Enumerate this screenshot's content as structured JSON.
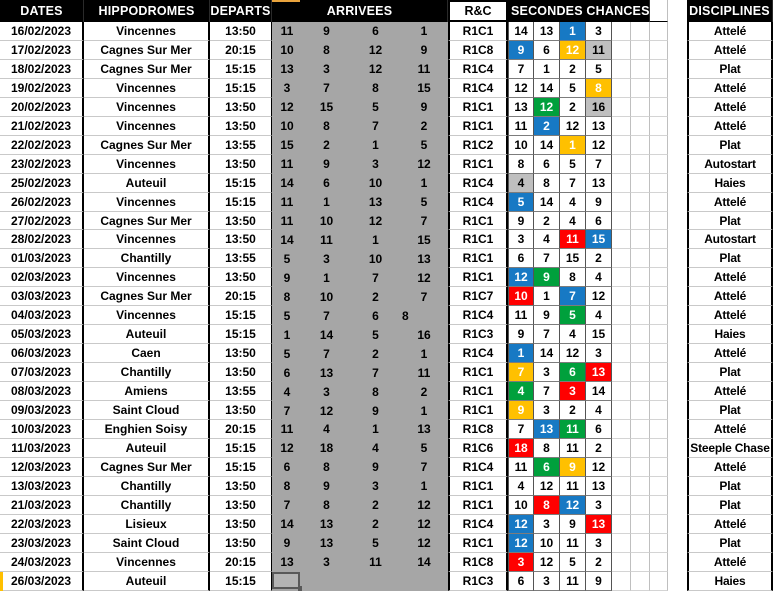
{
  "header": {
    "dates": "DATES",
    "hippodromes": "HIPPODROMES",
    "departs": "DEPARTS",
    "arrivees": "ARRIVEES",
    "rc": "R&C",
    "secondes_chances": "SECONDES CHANCES",
    "disciplines": "DISCIPLINES"
  },
  "colors": {
    "header_bg": "#000000",
    "header_text": "#ffffff",
    "arrivees_bg": "#a6a6a6",
    "blue": "#1779c4",
    "green": "#00a03c",
    "yellow": "#ffc000",
    "red": "#ff0000",
    "gray": "#bfbfbf",
    "selection_border": "#595959",
    "marker_orange": "#e8a33d"
  },
  "rows": [
    {
      "date": "16/02/2023",
      "hippodrome": "Vincennes",
      "depart": "13:50",
      "arrivees": [
        "11",
        "9",
        "6",
        "1"
      ],
      "rc": "R1C1",
      "sc": [
        [
          "14",
          ""
        ],
        [
          "13",
          ""
        ],
        [
          "1",
          "blue"
        ],
        [
          "3",
          ""
        ]
      ],
      "discipline": "Attelé"
    },
    {
      "date": "17/02/2023",
      "hippodrome": "Cagnes Sur Mer",
      "depart": "20:15",
      "arrivees": [
        "10",
        "8",
        "12",
        "9"
      ],
      "rc": "R1C8",
      "sc": [
        [
          "9",
          "blue"
        ],
        [
          "6",
          ""
        ],
        [
          "12",
          "yellow"
        ],
        [
          "11",
          "gray"
        ]
      ],
      "discipline": "Attelé"
    },
    {
      "date": "18/02/2023",
      "hippodrome": "Cagnes Sur Mer",
      "depart": "15:15",
      "arrivees": [
        "13",
        "3",
        "12",
        "11"
      ],
      "rc": "R1C4",
      "sc": [
        [
          "7",
          ""
        ],
        [
          "1",
          ""
        ],
        [
          "2",
          ""
        ],
        [
          "5",
          ""
        ]
      ],
      "discipline": "Plat"
    },
    {
      "date": "19/02/2023",
      "hippodrome": "Vincennes",
      "depart": "15:15",
      "arrivees": [
        "3",
        "7",
        "8",
        "15"
      ],
      "rc": "R1C4",
      "sc": [
        [
          "12",
          ""
        ],
        [
          "14",
          ""
        ],
        [
          "5",
          ""
        ],
        [
          "8",
          "yellow"
        ]
      ],
      "discipline": "Attelé"
    },
    {
      "date": "20/02/2023",
      "hippodrome": "Vincennes",
      "depart": "13:50",
      "arrivees": [
        "12",
        "15",
        "5",
        "9"
      ],
      "rc": "R1C1",
      "sc": [
        [
          "13",
          ""
        ],
        [
          "12",
          "green"
        ],
        [
          "2",
          ""
        ],
        [
          "16",
          "gray"
        ]
      ],
      "discipline": "Attelé"
    },
    {
      "date": "21/02/2023",
      "hippodrome": "Vincennes",
      "depart": "13:50",
      "arrivees": [
        "10",
        "8",
        "7",
        "2"
      ],
      "rc": "R1C1",
      "sc": [
        [
          "11",
          ""
        ],
        [
          "2",
          "blue"
        ],
        [
          "12",
          ""
        ],
        [
          "13",
          ""
        ]
      ],
      "discipline": "Attelé"
    },
    {
      "date": "22/02/2023",
      "hippodrome": "Cagnes Sur Mer",
      "depart": "13:55",
      "arrivees": [
        "15",
        "2",
        "1",
        "5"
      ],
      "rc": "R1C2",
      "sc": [
        [
          "10",
          ""
        ],
        [
          "14",
          ""
        ],
        [
          "1",
          "yellow"
        ],
        [
          "12",
          ""
        ]
      ],
      "discipline": "Plat"
    },
    {
      "date": "23/02/2023",
      "hippodrome": "Vincennes",
      "depart": "13:50",
      "arrivees": [
        "11",
        "9",
        "3",
        "12"
      ],
      "rc": "R1C1",
      "sc": [
        [
          "8",
          ""
        ],
        [
          "6",
          ""
        ],
        [
          "5",
          ""
        ],
        [
          "7",
          ""
        ]
      ],
      "discipline": "Autostart"
    },
    {
      "date": "25/02/2023",
      "hippodrome": "Auteuil",
      "depart": "15:15",
      "arrivees": [
        "14",
        "6",
        "10",
        "1"
      ],
      "rc": "R1C4",
      "sc": [
        [
          "4",
          "gray"
        ],
        [
          "8",
          ""
        ],
        [
          "7",
          ""
        ],
        [
          "13",
          ""
        ]
      ],
      "discipline": "Haies"
    },
    {
      "date": "26/02/2023",
      "hippodrome": "Vincennes",
      "depart": "15:15",
      "arrivees": [
        "11",
        "1",
        "13",
        "5"
      ],
      "rc": "R1C4",
      "sc": [
        [
          "5",
          "blue"
        ],
        [
          "14",
          ""
        ],
        [
          "4",
          ""
        ],
        [
          "9",
          ""
        ]
      ],
      "discipline": "Attelé"
    },
    {
      "date": "27/02/2023",
      "hippodrome": "Cagnes Sur Mer",
      "depart": "13:50",
      "arrivees": [
        "11",
        "10",
        "12",
        "7"
      ],
      "rc": "R1C1",
      "sc": [
        [
          "9",
          ""
        ],
        [
          "2",
          ""
        ],
        [
          "4",
          ""
        ],
        [
          "6",
          ""
        ]
      ],
      "discipline": "Plat"
    },
    {
      "date": "28/02/2023",
      "hippodrome": "Vincennes",
      "depart": "13:50",
      "arrivees": [
        "14",
        "11",
        "1",
        "15"
      ],
      "rc": "R1C1",
      "sc": [
        [
          "3",
          ""
        ],
        [
          "4",
          ""
        ],
        [
          "11",
          "red"
        ],
        [
          "15",
          "blue"
        ]
      ],
      "discipline": "Autostart"
    },
    {
      "date": "01/03/2023",
      "hippodrome": "Chantilly",
      "depart": "13:55",
      "arrivees": [
        "5",
        "3",
        "10",
        "13"
      ],
      "rc": "R1C1",
      "sc": [
        [
          "6",
          ""
        ],
        [
          "7",
          ""
        ],
        [
          "15",
          ""
        ],
        [
          "2",
          ""
        ]
      ],
      "discipline": "Plat"
    },
    {
      "date": "02/03/2023",
      "hippodrome": "Vincennes",
      "depart": "13:50",
      "arrivees": [
        "9",
        "1",
        "7",
        "12"
      ],
      "rc": "R1C1",
      "sc": [
        [
          "12",
          "blue"
        ],
        [
          "9",
          "green"
        ],
        [
          "8",
          ""
        ],
        [
          "4",
          ""
        ]
      ],
      "discipline": "Attelé"
    },
    {
      "date": "03/03/2023",
      "hippodrome": "Cagnes Sur Mer",
      "depart": "20:15",
      "arrivees": [
        "8",
        "10",
        "2",
        "7"
      ],
      "rc": "R1C7",
      "sc": [
        [
          "10",
          "red"
        ],
        [
          "1",
          ""
        ],
        [
          "7",
          "blue"
        ],
        [
          "12",
          ""
        ]
      ],
      "discipline": "Attelé"
    },
    {
      "date": "04/03/2023",
      "hippodrome": "Vincennes",
      "depart": "15:15",
      "arrivees": [
        "5",
        "7",
        "6",
        "8"
      ],
      "arr4_left": true,
      "rc": "R1C4",
      "sc": [
        [
          "11",
          ""
        ],
        [
          "9",
          ""
        ],
        [
          "5",
          "green"
        ],
        [
          "4",
          ""
        ]
      ],
      "discipline": "Attelé"
    },
    {
      "date": "05/03/2023",
      "hippodrome": "Auteuil",
      "depart": "15:15",
      "arrivees": [
        "1",
        "14",
        "5",
        "16"
      ],
      "rc": "R1C3",
      "sc": [
        [
          "9",
          ""
        ],
        [
          "7",
          ""
        ],
        [
          "4",
          ""
        ],
        [
          "15",
          ""
        ]
      ],
      "discipline": "Haies"
    },
    {
      "date": "06/03/2023",
      "hippodrome": "Caen",
      "depart": "13:50",
      "arrivees": [
        "5",
        "7",
        "2",
        "1"
      ],
      "rc": "R1C4",
      "sc": [
        [
          "1",
          "blue"
        ],
        [
          "14",
          ""
        ],
        [
          "12",
          ""
        ],
        [
          "3",
          ""
        ]
      ],
      "discipline": "Attelé"
    },
    {
      "date": "07/03/2023",
      "hippodrome": "Chantilly",
      "depart": "13:50",
      "arrivees": [
        "6",
        "13",
        "7",
        "11"
      ],
      "rc": "R1C1",
      "sc": [
        [
          "7",
          "yellow"
        ],
        [
          "3",
          ""
        ],
        [
          "6",
          "green"
        ],
        [
          "13",
          "red"
        ]
      ],
      "discipline": "Plat"
    },
    {
      "date": "08/03/2023",
      "hippodrome": "Amiens",
      "depart": "13:55",
      "arrivees": [
        "4",
        "3",
        "8",
        "2"
      ],
      "rc": "R1C1",
      "sc": [
        [
          "4",
          "green"
        ],
        [
          "7",
          ""
        ],
        [
          "3",
          "red"
        ],
        [
          "14",
          ""
        ]
      ],
      "discipline": "Attelé"
    },
    {
      "date": "09/03/2023",
      "hippodrome": "Saint Cloud",
      "depart": "13:50",
      "arrivees": [
        "7",
        "12",
        "9",
        "1"
      ],
      "rc": "R1C1",
      "sc": [
        [
          "9",
          "yellow"
        ],
        [
          "3",
          ""
        ],
        [
          "2",
          ""
        ],
        [
          "4",
          ""
        ]
      ],
      "discipline": "Plat"
    },
    {
      "date": "10/03/2023",
      "hippodrome": "Enghien Soisy",
      "depart": "20:15",
      "arrivees": [
        "11",
        "4",
        "1",
        "13"
      ],
      "rc": "R1C8",
      "sc": [
        [
          "7",
          ""
        ],
        [
          "13",
          "blue"
        ],
        [
          "11",
          "green"
        ],
        [
          "6",
          ""
        ]
      ],
      "discipline": "Attelé"
    },
    {
      "date": "11/03/2023",
      "hippodrome": "Auteuil",
      "depart": "15:15",
      "arrivees": [
        "12",
        "18",
        "4",
        "5"
      ],
      "rc": "R1C6",
      "sc": [
        [
          "18",
          "red"
        ],
        [
          "8",
          ""
        ],
        [
          "11",
          ""
        ],
        [
          "2",
          ""
        ]
      ],
      "discipline": "Steeple Chase"
    },
    {
      "date": "12/03/2023",
      "hippodrome": "Cagnes Sur Mer",
      "depart": "15:15",
      "arrivees": [
        "6",
        "8",
        "9",
        "7"
      ],
      "rc": "R1C4",
      "sc": [
        [
          "11",
          ""
        ],
        [
          "6",
          "green"
        ],
        [
          "9",
          "yellow"
        ],
        [
          "12",
          ""
        ]
      ],
      "discipline": "Attelé"
    },
    {
      "date": "13/03/2023",
      "hippodrome": "Chantilly",
      "depart": "13:50",
      "arrivees": [
        "8",
        "9",
        "3",
        "1"
      ],
      "rc": "R1C1",
      "sc": [
        [
          "4",
          ""
        ],
        [
          "12",
          ""
        ],
        [
          "11",
          ""
        ],
        [
          "13",
          ""
        ]
      ],
      "discipline": "Plat"
    },
    {
      "date": "21/03/2023",
      "hippodrome": "Chantilly",
      "depart": "13:50",
      "arrivees": [
        "7",
        "8",
        "2",
        "12"
      ],
      "rc": "R1C1",
      "sc": [
        [
          "10",
          ""
        ],
        [
          "8",
          "red"
        ],
        [
          "12",
          "blue"
        ],
        [
          "3",
          ""
        ]
      ],
      "discipline": "Plat"
    },
    {
      "date": "22/03/2023",
      "hippodrome": "Lisieux",
      "depart": "13:50",
      "arrivees": [
        "14",
        "13",
        "2",
        "12"
      ],
      "rc": "R1C4",
      "sc": [
        [
          "12",
          "blue"
        ],
        [
          "3",
          ""
        ],
        [
          "9",
          ""
        ],
        [
          "13",
          "red"
        ]
      ],
      "discipline": "Attelé"
    },
    {
      "date": "23/03/2023",
      "hippodrome": "Saint Cloud",
      "depart": "13:50",
      "arrivees": [
        "9",
        "13",
        "5",
        "12"
      ],
      "rc": "R1C1",
      "sc": [
        [
          "12",
          "blue"
        ],
        [
          "10",
          ""
        ],
        [
          "11",
          ""
        ],
        [
          "3",
          ""
        ]
      ],
      "discipline": "Plat"
    },
    {
      "date": "24/03/2023",
      "hippodrome": "Vincennes",
      "depart": "20:15",
      "arrivees": [
        "13",
        "3",
        "11",
        "14"
      ],
      "rc": "R1C8",
      "sc": [
        [
          "3",
          "red"
        ],
        [
          "12",
          ""
        ],
        [
          "5",
          ""
        ],
        [
          "2",
          ""
        ]
      ],
      "discipline": "Attelé"
    },
    {
      "date": "26/03/2023",
      "hippodrome": "Auteuil",
      "depart": "15:15",
      "arrivees": [
        "",
        "",
        "",
        ""
      ],
      "selected_cell": true,
      "rc": "R1C3",
      "sc": [
        [
          "6",
          ""
        ],
        [
          "3",
          ""
        ],
        [
          "11",
          ""
        ],
        [
          "9",
          ""
        ]
      ],
      "discipline": "Haies"
    }
  ]
}
